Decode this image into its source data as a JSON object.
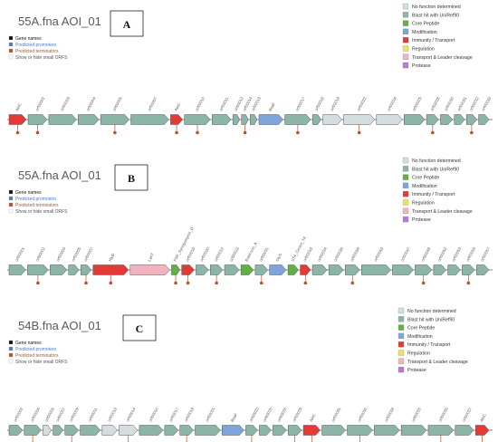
{
  "colors": {
    "nofunc": "#d4dde0",
    "blast": "#8ab5a7",
    "core": "#62b043",
    "mod": "#7ea5d9",
    "immune": "#e33a35",
    "reg": "#e8e55a",
    "transport": "#f1b4be",
    "protease": "#b77ad1",
    "promoter": "#4b78c7",
    "terminator": "#b8522c",
    "backbone": "#8a8a8a"
  },
  "controls": {
    "gene_names": "Gene names",
    "promoters": "Predicted promoters",
    "terminators": "Predicted terminators",
    "small_orfs": "Show or hide small ORFS"
  },
  "legend": [
    {
      "label": "No function determined",
      "color": "nofunc"
    },
    {
      "label": "Blast hit with UniRef90",
      "color": "blast"
    },
    {
      "label": "Core Peptide",
      "color": "core"
    },
    {
      "label": "Modification",
      "color": "mod"
    },
    {
      "label": "Immunity / Transport",
      "color": "immune"
    },
    {
      "label": "Regulation",
      "color": "reg"
    },
    {
      "label": "Transport & Leader cleavage",
      "color": "transport"
    },
    {
      "label": "Protease",
      "color": "protease"
    }
  ],
  "panels": [
    {
      "title": "55A.fna AOI_01",
      "label": "A",
      "genes": [
        {
          "name": "AbiC",
          "type": "immune",
          "dir": 1
        },
        {
          "name": "orf00002",
          "type": "blast",
          "dir": 1
        },
        {
          "name": "orf00003",
          "type": "blast",
          "dir": 1
        },
        {
          "name": "orf00004",
          "type": "blast",
          "dir": 1
        },
        {
          "name": "orf00005",
          "type": "blast",
          "dir": 1
        },
        {
          "name": "orf00007",
          "type": "blast",
          "dir": 1
        },
        {
          "name": "AbiC",
          "type": "immune",
          "dir": 1
        },
        {
          "name": "orf00010",
          "type": "blast",
          "dir": 1
        },
        {
          "name": "orf00011",
          "type": "blast",
          "dir": 1
        },
        {
          "name": "orf00013",
          "type": "blast",
          "dir": 1
        },
        {
          "name": "orf00014",
          "type": "blast",
          "dir": 1
        },
        {
          "name": "orf00015",
          "type": "blast",
          "dir": 1
        },
        {
          "name": "BsaF",
          "type": "mod",
          "dir": 1
        },
        {
          "name": "orf00017",
          "type": "blast",
          "dir": 1
        },
        {
          "name": "orf00018",
          "type": "blast",
          "dir": 1
        },
        {
          "name": "orf00019",
          "type": "nofunc",
          "dir": 1
        },
        {
          "name": "orf00022",
          "type": "nofunc",
          "dir": 1
        },
        {
          "name": "orf00024",
          "type": "nofunc",
          "dir": 1
        },
        {
          "name": "orf00025",
          "type": "blast",
          "dir": 1
        },
        {
          "name": "orf00028",
          "type": "blast",
          "dir": 1
        },
        {
          "name": "orf00030",
          "type": "blast",
          "dir": 1
        },
        {
          "name": "orf00031",
          "type": "blast",
          "dir": 1
        },
        {
          "name": "orf00032",
          "type": "blast",
          "dir": 1
        },
        {
          "name": "orf00033",
          "type": "blast",
          "dir": 1
        }
      ]
    },
    {
      "title": "55A.fna AOI_01",
      "label": "B",
      "genes": [
        {
          "name": "orf00001",
          "type": "blast",
          "dir": 1
        },
        {
          "name": "orf00002",
          "type": "blast",
          "dir": 1
        },
        {
          "name": "orf00003",
          "type": "blast",
          "dir": 1
        },
        {
          "name": "orf00005",
          "type": "blast",
          "dir": 1
        },
        {
          "name": "orf00007",
          "type": "blast",
          "dir": 1
        },
        {
          "name": "HlyD",
          "type": "immune",
          "dir": 1
        },
        {
          "name": "LanT",
          "type": "transport",
          "dir": 1
        },
        {
          "name": "FSP_Syringomycin_D",
          "type": "core",
          "dir": 1
        },
        {
          "name": "orf00018",
          "type": "immune",
          "dir": 1
        },
        {
          "name": "orf00020",
          "type": "blast",
          "dir": 1
        },
        {
          "name": "orf00022",
          "type": "blast",
          "dir": 1
        },
        {
          "name": "orf00023",
          "type": "blast",
          "dir": 1
        },
        {
          "name": "Enterocin_A",
          "type": "core",
          "dir": 1
        },
        {
          "name": "orf00031",
          "type": "blast",
          "dir": 1
        },
        {
          "name": "GlyS",
          "type": "mod",
          "dir": 1
        },
        {
          "name": "ST4_Cerein_T4",
          "type": "core",
          "dir": 1
        },
        {
          "name": "orf00033",
          "type": "immune",
          "dir": 1
        },
        {
          "name": "orf00034",
          "type": "blast",
          "dir": 1
        },
        {
          "name": "orf00036",
          "type": "blast",
          "dir": 1
        },
        {
          "name": "orf00039",
          "type": "blast",
          "dir": 1
        },
        {
          "name": "orf00043",
          "type": "blast",
          "dir": 1
        },
        {
          "name": "orf00047",
          "type": "blast",
          "dir": 1
        },
        {
          "name": "orf00049",
          "type": "blast",
          "dir": 1
        },
        {
          "name": "orf00050",
          "type": "blast",
          "dir": 1
        },
        {
          "name": "orf00053",
          "type": "blast",
          "dir": 1
        },
        {
          "name": "orf00055",
          "type": "blast",
          "dir": 1
        },
        {
          "name": "orf00057",
          "type": "blast",
          "dir": 1
        }
      ]
    },
    {
      "title": "54B.fna AOI_01",
      "label": "C",
      "genes": [
        {
          "name": "orf00002",
          "type": "blast",
          "dir": 1
        },
        {
          "name": "orf00004",
          "type": "blast",
          "dir": 1
        },
        {
          "name": "orf00006",
          "type": "nofunc",
          "dir": 1
        },
        {
          "name": "orf00007",
          "type": "blast",
          "dir": 1
        },
        {
          "name": "orf00009",
          "type": "blast",
          "dir": 1
        },
        {
          "name": "orf00011",
          "type": "blast",
          "dir": 1
        },
        {
          "name": "orf00013",
          "type": "nofunc",
          "dir": 1
        },
        {
          "name": "orf00014",
          "type": "nofunc",
          "dir": 1
        },
        {
          "name": "orf00016",
          "type": "blast",
          "dir": 1
        },
        {
          "name": "orf00017",
          "type": "blast",
          "dir": 1
        },
        {
          "name": "orf00019",
          "type": "blast",
          "dir": 1
        },
        {
          "name": "orf00021",
          "type": "blast",
          "dir": 1
        },
        {
          "name": "BsaF",
          "type": "mod",
          "dir": 1
        },
        {
          "name": "orf00023",
          "type": "blast",
          "dir": 1
        },
        {
          "name": "orf00025",
          "type": "blast",
          "dir": 1
        },
        {
          "name": "orf00026",
          "type": "blast",
          "dir": 1
        },
        {
          "name": "orf00029",
          "type": "blast",
          "dir": 1
        },
        {
          "name": "AbiC",
          "type": "immune",
          "dir": 1
        },
        {
          "name": "orf00031",
          "type": "blast",
          "dir": 1
        },
        {
          "name": "orf00032",
          "type": "blast",
          "dir": 1
        },
        {
          "name": "orf00034",
          "type": "blast",
          "dir": 1
        },
        {
          "name": "orf00035",
          "type": "blast",
          "dir": 1
        },
        {
          "name": "orf00036",
          "type": "blast",
          "dir": 1
        },
        {
          "name": "orf00037",
          "type": "blast",
          "dir": 1
        },
        {
          "name": "AbiC",
          "type": "immune",
          "dir": 1
        }
      ]
    }
  ]
}
